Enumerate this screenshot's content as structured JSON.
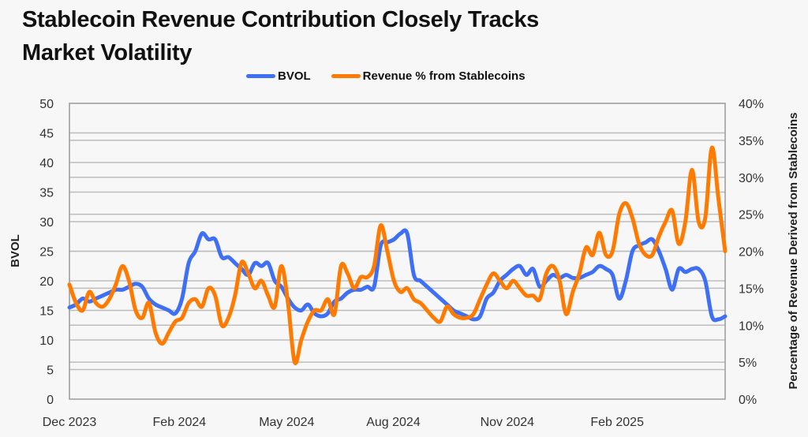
{
  "title_lines": [
    "Stablecoin Revenue Contribution Closely Tracks",
    "Market Volatility"
  ],
  "chart_data": {
    "type": "line",
    "title": "Stablecoin Revenue Contribution Closely Tracks Market Volatility",
    "xlabel": "",
    "ylabel": "BVOL",
    "y2label": "Percentage of Revenue Derived from Stablecoins",
    "ylim": [
      0,
      50
    ],
    "y2lim": [
      0,
      40
    ],
    "yticks": [
      "0",
      "5",
      "10",
      "15",
      "20",
      "25",
      "30",
      "35",
      "40",
      "45",
      "50"
    ],
    "y2ticks": [
      "0%",
      "5%",
      "10%",
      "15%",
      "20%",
      "25%",
      "30%",
      "35%",
      "40%"
    ],
    "grid": true,
    "legend_position": "top-center",
    "x_ticks": [
      {
        "label": "Dec 2023",
        "index": 0
      },
      {
        "label": "Feb 2024",
        "index": 16.6
      },
      {
        "label": "May 2024",
        "index": 32.8
      },
      {
        "label": "Aug 2024",
        "index": 48.9
      },
      {
        "label": "Nov 2024",
        "index": 66.1
      },
      {
        "label": "Feb 2025",
        "index": 82.7
      }
    ],
    "series": [
      {
        "name": "BVOL",
        "axis": "left",
        "color": "#3f6ff5",
        "values": [
          15.5,
          16,
          17,
          16.5,
          17,
          17.5,
          18,
          18.5,
          18.5,
          19,
          19.5,
          19,
          17,
          16,
          15.5,
          15,
          14.5,
          17,
          23,
          25,
          28,
          27,
          27,
          24,
          24,
          23,
          22,
          21,
          23,
          22.5,
          23,
          20,
          19,
          17,
          15.5,
          15,
          16,
          14.5,
          14,
          14.5,
          16.5,
          17,
          18,
          18.5,
          18.5,
          19,
          19,
          26,
          26.5,
          27,
          28,
          28,
          21,
          20,
          19,
          18,
          17,
          16,
          15,
          14.5,
          14,
          13.5,
          14,
          17,
          18,
          20,
          21,
          22,
          22.5,
          21,
          22,
          19,
          20,
          21,
          20.5,
          21,
          20.5,
          20.5,
          21,
          21.5,
          22.5,
          22,
          21,
          17,
          20,
          25,
          26,
          26.5,
          27,
          25,
          22,
          18.5,
          22,
          21.5,
          22,
          22,
          20,
          14,
          13.5,
          14
        ]
      },
      {
        "name": "Revenue % from Stablecoins",
        "axis": "right",
        "color": "#ff7a00",
        "values": [
          15.5,
          13,
          12,
          14.5,
          13,
          12.5,
          13.5,
          15.5,
          18,
          16,
          12,
          11,
          13,
          9,
          7.5,
          9,
          10.5,
          11,
          13,
          13.5,
          12.5,
          15,
          14,
          10,
          11,
          14,
          18.5,
          17,
          15,
          16,
          14,
          12.5,
          18,
          13,
          5,
          8,
          10.5,
          12,
          12,
          13.5,
          11.5,
          18,
          17,
          15,
          16.5,
          16.5,
          18,
          23.5,
          20,
          16,
          14.5,
          15,
          13.5,
          13,
          12,
          11,
          10.5,
          12.5,
          11.5,
          11,
          11,
          11.5,
          13.5,
          15.5,
          17,
          16,
          15,
          16,
          15,
          14,
          14,
          13.5,
          17,
          18,
          16,
          11.5,
          14.5,
          17,
          20.5,
          19.5,
          22.5,
          19.5,
          20,
          25,
          26.5,
          24.5,
          21,
          19.5,
          19.5,
          22,
          24,
          25.5,
          21,
          24,
          31,
          24,
          24.5,
          34,
          27,
          20
        ]
      }
    ]
  }
}
